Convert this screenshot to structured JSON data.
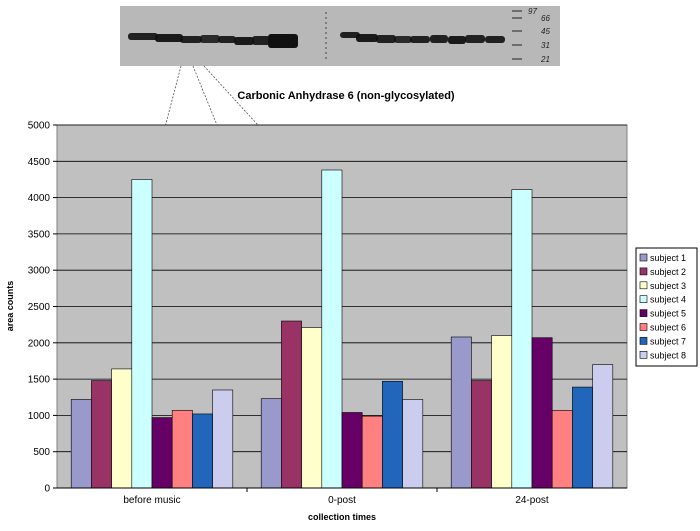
{
  "chart_data": {
    "type": "bar",
    "title": "Carbonic Anhydrase 6 (non-glycosylated)",
    "xlabel": "collection times",
    "ylabel": "area counts",
    "ylim": [
      0,
      5000
    ],
    "ytick_step": 500,
    "grid": true,
    "legend_position": "right",
    "categories": [
      "before music",
      "0-post",
      "24-post"
    ],
    "series": [
      {
        "name": "subject 1",
        "color": "#9999cc",
        "values": [
          1220,
          1230,
          2080
        ]
      },
      {
        "name": "subject 2",
        "color": "#993366",
        "values": [
          1480,
          2300,
          1480
        ]
      },
      {
        "name": "subject 3",
        "color": "#ffffcc",
        "values": [
          1640,
          2210,
          2100
        ]
      },
      {
        "name": "subject 4",
        "color": "#ccffff",
        "values": [
          4250,
          4380,
          4110
        ]
      },
      {
        "name": "subject 5",
        "color": "#660066",
        "values": [
          970,
          1040,
          2070
        ]
      },
      {
        "name": "subject 6",
        "color": "#ff8080",
        "values": [
          1070,
          990,
          1070
        ]
      },
      {
        "name": "subject 7",
        "color": "#2266bb",
        "values": [
          1020,
          1470,
          1390
        ]
      },
      {
        "name": "subject 8",
        "color": "#ccccee",
        "values": [
          1350,
          1220,
          1700
        ]
      }
    ]
  },
  "blot": {
    "marker_labels": [
      "97",
      "66",
      "45",
      "31",
      "21"
    ]
  },
  "colors": {
    "plot_background": "#c0c0c0",
    "gridline": "#000000"
  }
}
